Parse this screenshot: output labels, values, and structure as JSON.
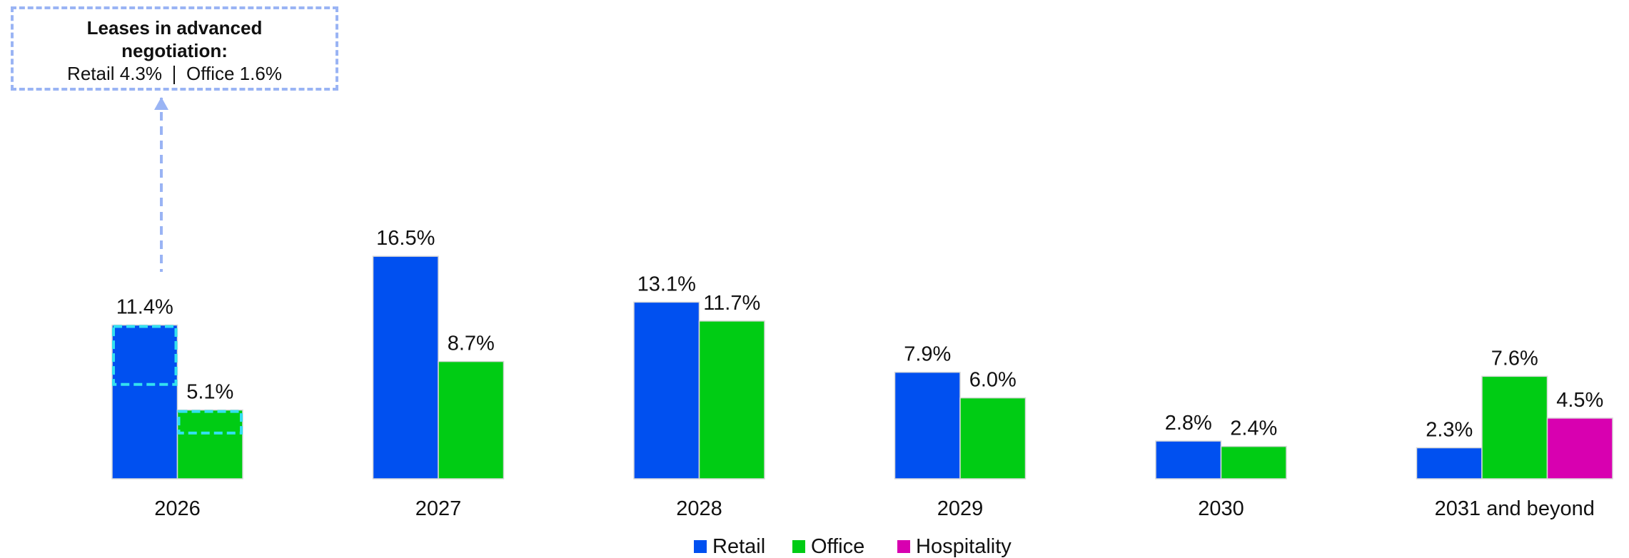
{
  "chart_data": {
    "type": "bar",
    "categories": [
      "2026",
      "2027",
      "2028",
      "2029",
      "2030",
      "2031 and beyond"
    ],
    "series": [
      {
        "name": "Retail",
        "color": "#0050f0",
        "values": [
          11.4,
          16.5,
          13.1,
          7.9,
          2.8,
          2.3
        ],
        "value_labels": [
          "11.4%",
          "16.5%",
          "13.1%",
          "7.9%",
          "2.8%",
          "2.3%"
        ]
      },
      {
        "name": "Office",
        "color": "#00cc14",
        "values": [
          5.1,
          8.7,
          11.7,
          6.0,
          2.4,
          7.6
        ],
        "value_labels": [
          "5.1%",
          "8.7%",
          "11.7%",
          "6.0%",
          "2.4%",
          "7.6%"
        ]
      },
      {
        "name": "Hospitality",
        "color": "#d800b0",
        "values": [
          null,
          null,
          null,
          null,
          null,
          4.5
        ],
        "value_labels": [
          null,
          null,
          null,
          null,
          null,
          "4.5%"
        ]
      }
    ],
    "annotation": {
      "title": "Leases in advanced negotiation:",
      "texts": [
        "Retail 4.3%",
        "Office 1.6%"
      ],
      "values": [
        4.3,
        1.6
      ],
      "color": "#33e0f0"
    }
  }
}
